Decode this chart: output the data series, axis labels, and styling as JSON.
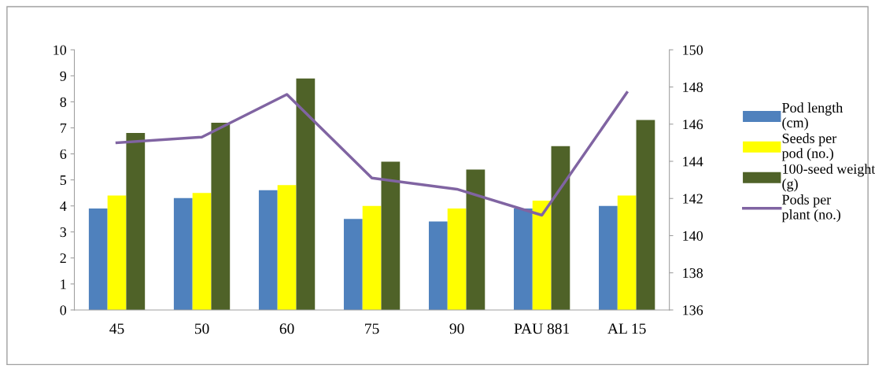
{
  "chart_data": {
    "type": "bar",
    "categories": [
      "45",
      "50",
      "60",
      "75",
      "90",
      "PAU 881",
      "AL 15"
    ],
    "series": [
      {
        "name": "Pod length (cm)",
        "color": "#4f81bd",
        "values": [
          3.9,
          4.3,
          4.6,
          3.5,
          3.4,
          3.9,
          4.0
        ]
      },
      {
        "name": "Seeds per pod (no.)",
        "color": "#ffff00",
        "values": [
          4.4,
          4.5,
          4.8,
          4.0,
          3.9,
          4.2,
          4.4
        ]
      },
      {
        "name": "100-seed weight (g)",
        "color": "#4f6228",
        "values": [
          6.8,
          7.2,
          8.9,
          5.7,
          5.4,
          6.3,
          7.3
        ]
      },
      {
        "name": "Pods per plant (no.)",
        "color": "#8064a2",
        "type": "line",
        "axis": "y2",
        "values": [
          145.0,
          145.3,
          147.6,
          143.1,
          142.5,
          141.1,
          147.7
        ]
      }
    ],
    "ylim": [
      0,
      10
    ],
    "yticks": [
      0,
      1,
      2,
      3,
      4,
      5,
      6,
      7,
      8,
      9,
      10
    ],
    "y2lim": [
      136,
      150
    ],
    "y2ticks": [
      136,
      138,
      140,
      142,
      144,
      146,
      148,
      150
    ],
    "legend": "right",
    "grid": false,
    "marker": "none"
  }
}
